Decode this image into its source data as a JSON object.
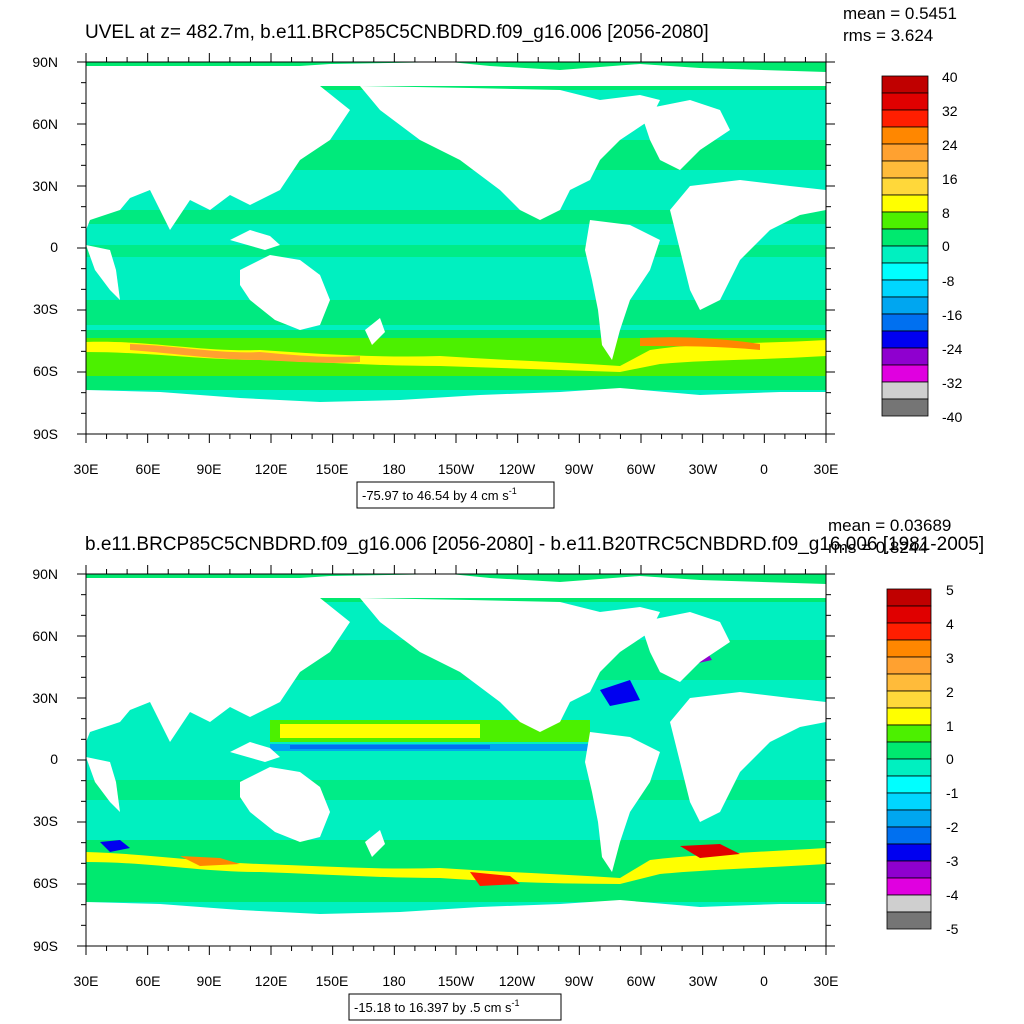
{
  "panels": [
    {
      "title": "UVEL at z= 482.7m, b.e11.BRCP85C5CNBDRD.f09_g16.006 [2056-2080]",
      "stats": {
        "mean": "mean = 0.5451",
        "rms": "rms = 3.624"
      },
      "lat_labels": [
        "90N",
        "60N",
        "30N",
        "0",
        "30S",
        "60S",
        "90S"
      ],
      "lon_labels": [
        "30E",
        "60E",
        "90E",
        "120E",
        "150E",
        "180",
        "150W",
        "120W",
        "90W",
        "60W",
        "30W",
        "0",
        "30E"
      ],
      "colorbar_labels": [
        "40",
        "32",
        "24",
        "16",
        "8",
        "0",
        "-8",
        "-16",
        "-24",
        "-32",
        "-40"
      ],
      "range_text": "-75.97 to 46.54 by 4 cm s",
      "range_unit_exp": "-1"
    },
    {
      "title": "b.e11.BRCP85C5CNBDRD.f09_g16.006 [2056-2080] - b.e11.B20TRC5CNBDRD.f09_g16.006 [1981-2005]",
      "stats": {
        "mean": "mean = 0.03689",
        "rms": "rms = 0.8244"
      },
      "lat_labels": [
        "90N",
        "60N",
        "30N",
        "0",
        "30S",
        "60S",
        "90S"
      ],
      "lon_labels": [
        "30E",
        "60E",
        "90E",
        "120E",
        "150E",
        "180",
        "150W",
        "120W",
        "90W",
        "60W",
        "30W",
        "0",
        "30E"
      ],
      "colorbar_labels": [
        "5",
        "4",
        "3",
        "2",
        "1",
        "0",
        "-1",
        "-2",
        "-3",
        "-4",
        "-5"
      ],
      "range_text": "-15.18 to 16.397 by .5 cm s",
      "range_unit_exp": "-1"
    }
  ],
  "colormap": [
    "#757575",
    "#cfcfcf",
    "#e000e0",
    "#8f00cf",
    "#0000f0",
    "#0070f0",
    "#00a6f0",
    "#00d6ff",
    "#00ffff",
    "#00f0c0",
    "#00e96f",
    "#4cf000",
    "#ffff00",
    "#ffd83a",
    "#ffbb3a",
    "#ffa130",
    "#ff8700",
    "#ff1e00",
    "#e00000",
    "#c00000"
  ]
}
